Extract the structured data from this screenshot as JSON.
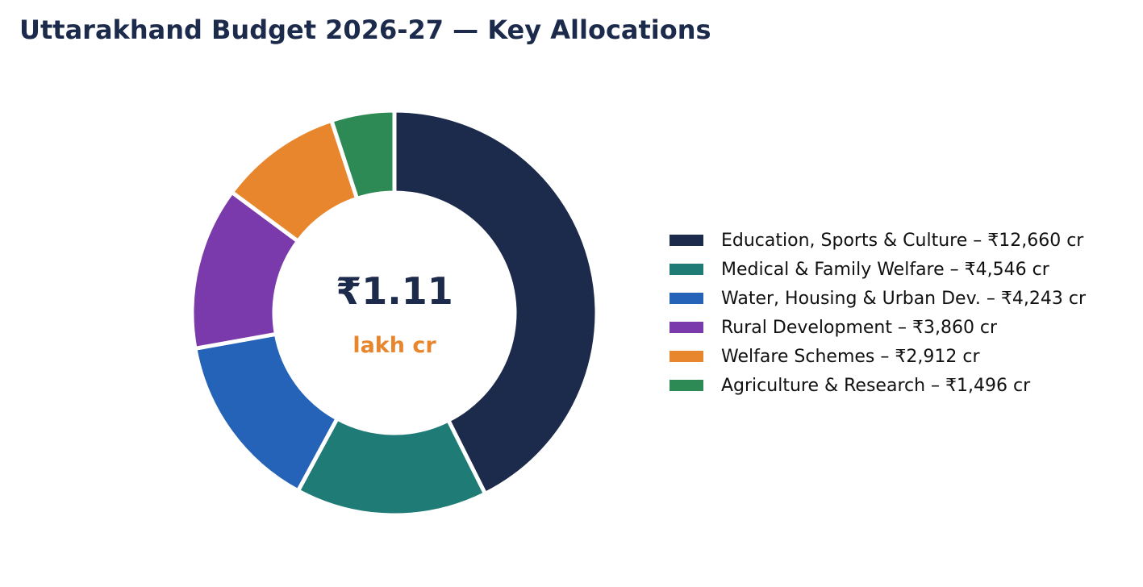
{
  "chart_data": {
    "type": "pie",
    "variant": "donut",
    "title": "Uttarakhand Budget 2026-27 — Key Allocations",
    "center_value": "₹1.11",
    "center_unit": "lakh cr",
    "center_value_color": "#1c2a4b",
    "center_unit_color": "#e8862d",
    "legend_position": "right",
    "slices": [
      {
        "label": "Education, Sports & Culture – ₹12,660 cr",
        "value": 12660,
        "color": "#1c2a4b"
      },
      {
        "label": "Medical & Family Welfare – ₹4,546 cr",
        "value": 4546,
        "color": "#1e7b76"
      },
      {
        "label": "Water, Housing & Urban Dev. – ₹4,243 cr",
        "value": 4243,
        "color": "#2563b8"
      },
      {
        "label": "Rural Development – ₹3,860 cr",
        "value": 3860,
        "color": "#7b3aab"
      },
      {
        "label": "Welfare Schemes – ₹2,912 cr",
        "value": 2912,
        "color": "#e8862d"
      },
      {
        "label": "Agriculture & Research – ₹1,496 cr",
        "value": 1496,
        "color": "#2e8a55"
      }
    ]
  }
}
